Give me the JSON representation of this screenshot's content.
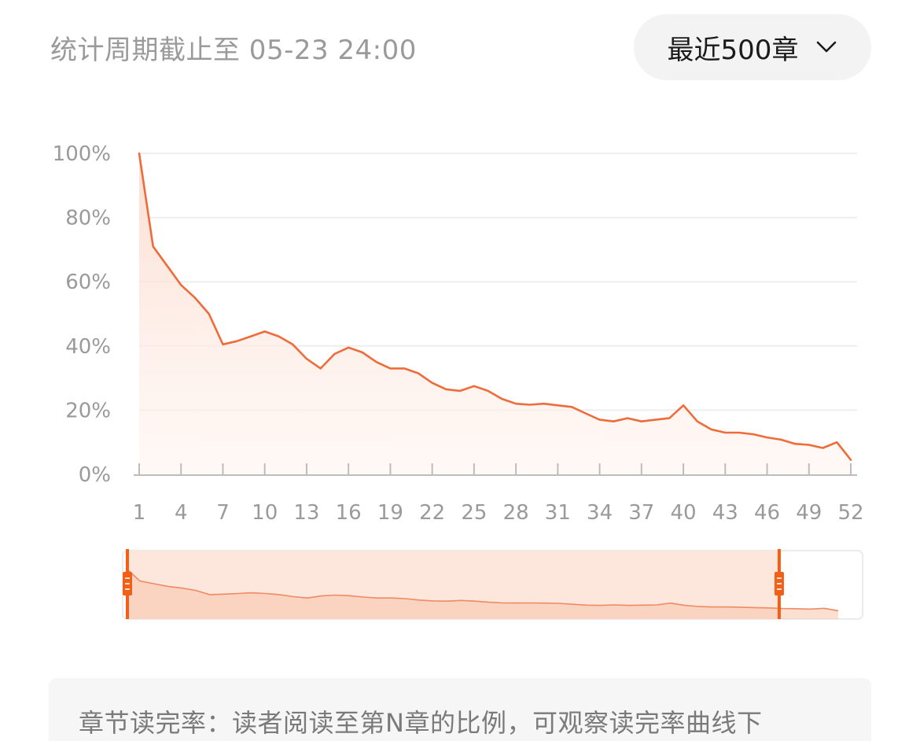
{
  "header": {
    "period_label": "统计周期截止至 05-23 24:00",
    "range_select": {
      "value": "最近500章",
      "icon": "chevron-down-icon"
    }
  },
  "chart_data": {
    "type": "area",
    "categories": [
      1,
      2,
      3,
      4,
      5,
      6,
      7,
      8,
      9,
      10,
      11,
      12,
      13,
      14,
      15,
      16,
      17,
      18,
      19,
      20,
      21,
      22,
      23,
      24,
      25,
      26,
      27,
      28,
      29,
      30,
      31,
      32,
      33,
      34,
      35,
      36,
      37,
      38,
      39,
      40,
      41,
      42,
      43,
      44,
      45,
      46,
      47,
      48,
      49,
      50,
      51,
      52
    ],
    "x_tick_labels": [
      "1",
      "4",
      "7",
      "10",
      "13",
      "16",
      "19",
      "22",
      "25",
      "28",
      "31",
      "34",
      "37",
      "40",
      "43",
      "46",
      "49",
      "52"
    ],
    "y_tick_labels": [
      "0%",
      "20%",
      "40%",
      "60%",
      "80%",
      "100%"
    ],
    "ylim": [
      0,
      100
    ],
    "values": [
      100,
      71,
      65,
      59,
      55,
      50,
      40.5,
      41.5,
      43,
      44.5,
      43,
      40.5,
      36,
      33,
      37.5,
      39.5,
      38,
      35,
      33,
      33,
      31.5,
      28.5,
      26.5,
      26,
      27.5,
      26,
      23.5,
      22,
      21.7,
      22,
      21.5,
      21,
      19,
      17,
      16.5,
      17.5,
      16.5,
      17,
      17.5,
      21.5,
      16.5,
      14,
      13,
      13,
      12.5,
      11.5,
      10.8,
      9.5,
      9.2,
      8.2,
      10,
      4.5
    ],
    "line_color": "#ef6c3a",
    "area_color": "#fde3d8",
    "grid": true,
    "slider": {
      "selected_start_index": 0,
      "selected_end_index": 47
    }
  },
  "footer": {
    "note": "章节读完率：读者阅读至第N章的比例，可观察读完率曲线下"
  }
}
